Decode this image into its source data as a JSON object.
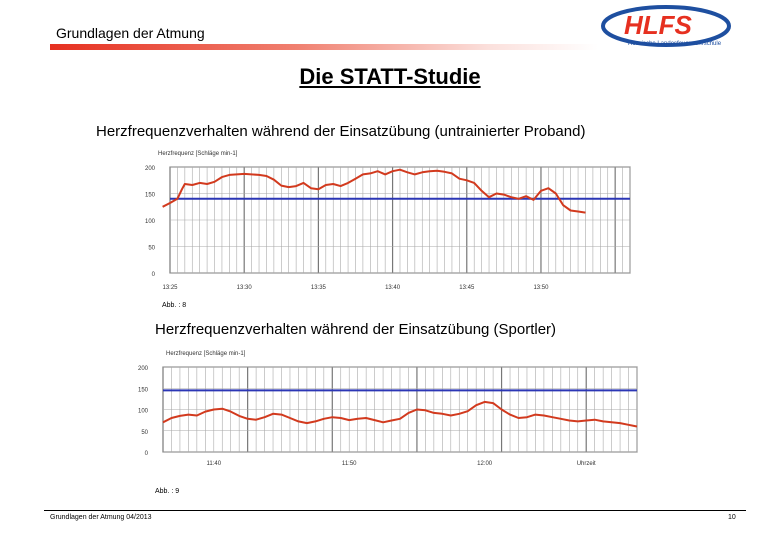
{
  "header": {
    "title": "Grundlagen der Atmung"
  },
  "logo": {
    "text": "HLFS",
    "tagline": "Hessische Landesfeuerwehrschule"
  },
  "page_title": "Die STATT-Studie",
  "footer": {
    "left": "Grundlagen der Atmung 04/2013",
    "page_number": "10"
  },
  "colors": {
    "heart_rate": "#d23a1e",
    "threshold": "#2b36b5",
    "grid": "#a9a9a9",
    "accent": "#e63020",
    "logo_blue": "#1e4fa0"
  },
  "chart_data": [
    {
      "type": "line",
      "title": "Herzfrequenzverhalten während der Einsatzübung (untrainierter Proband)",
      "ylabel": "Herzfrequenz [Schläge min-1]",
      "caption": "Abb. : 8",
      "ylim": [
        0,
        200
      ],
      "yticks": [
        0,
        50,
        100,
        150,
        200
      ],
      "xlim": [
        0,
        31
      ],
      "xticks": [
        {
          "x": 0,
          "label": "13:25"
        },
        {
          "x": 5,
          "label": "13:30"
        },
        {
          "x": 10,
          "label": "13:35"
        },
        {
          "x": 15,
          "label": "13:40"
        },
        {
          "x": 20,
          "label": "13:45"
        },
        {
          "x": 25,
          "label": "13:50"
        }
      ],
      "threshold": 140,
      "grid": true,
      "series": [
        {
          "points": [
            [
              -0.5,
              125
            ],
            [
              0,
              132
            ],
            [
              0.5,
              140
            ],
            [
              0.8,
              158
            ],
            [
              1,
              168
            ],
            [
              1.5,
              166
            ],
            [
              2,
              170
            ],
            [
              2.5,
              168
            ],
            [
              3,
              172
            ],
            [
              3.5,
              181
            ],
            [
              4,
              185
            ],
            [
              5,
              187
            ],
            [
              6,
              185
            ],
            [
              6.5,
              183
            ],
            [
              7,
              176
            ],
            [
              7.5,
              165
            ],
            [
              8,
              162
            ],
            [
              8.5,
              164
            ],
            [
              9,
              170
            ],
            [
              9.5,
              160
            ],
            [
              10,
              158
            ],
            [
              10.5,
              166
            ],
            [
              11,
              168
            ],
            [
              11.5,
              164
            ],
            [
              12,
              170
            ],
            [
              12.5,
              178
            ],
            [
              13,
              186
            ],
            [
              13.5,
              188
            ],
            [
              14,
              192
            ],
            [
              14.5,
              186
            ],
            [
              15,
              192
            ],
            [
              15.5,
              195
            ],
            [
              16,
              190
            ],
            [
              16.5,
              186
            ],
            [
              17,
              190
            ],
            [
              17.5,
              192
            ],
            [
              18,
              193
            ],
            [
              18.5,
              191
            ],
            [
              19,
              188
            ],
            [
              19.5,
              178
            ],
            [
              20,
              175
            ],
            [
              20.5,
              170
            ],
            [
              21,
              155
            ],
            [
              21.5,
              143
            ],
            [
              22,
              150
            ],
            [
              22.5,
              148
            ],
            [
              23,
              143
            ],
            [
              23.5,
              140
            ],
            [
              24,
              145
            ],
            [
              24.5,
              138
            ],
            [
              25,
              155
            ],
            [
              25.5,
              160
            ],
            [
              26,
              150
            ],
            [
              26.5,
              128
            ],
            [
              27,
              118
            ],
            [
              27.5,
              116
            ],
            [
              28,
              114
            ]
          ]
        }
      ]
    },
    {
      "type": "line",
      "title": "Herzfrequenzverhalten während der Einsatzübung (Sportler)",
      "ylabel": "Herzfrequenz [Schläge min-1]",
      "caption": "Abb. : 9",
      "ylim": [
        0,
        200
      ],
      "yticks": [
        0,
        50,
        100,
        150,
        200
      ],
      "xlim": [
        0,
        28
      ],
      "xticks": [
        {
          "x": 3,
          "label": "11:40"
        },
        {
          "x": 11,
          "label": "11:50"
        },
        {
          "x": 19,
          "label": "12:00"
        },
        {
          "x": 25,
          "label": "Uhrzeit"
        }
      ],
      "threshold": 145,
      "grid": true,
      "series": [
        {
          "points": [
            [
              0,
              70
            ],
            [
              0.5,
              80
            ],
            [
              1,
              85
            ],
            [
              1.5,
              88
            ],
            [
              2,
              86
            ],
            [
              2.5,
              95
            ],
            [
              3,
              100
            ],
            [
              3.5,
              102
            ],
            [
              4,
              95
            ],
            [
              4.5,
              85
            ],
            [
              5,
              78
            ],
            [
              5.5,
              76
            ],
            [
              6,
              82
            ],
            [
              6.5,
              90
            ],
            [
              7,
              88
            ],
            [
              7.5,
              80
            ],
            [
              8,
              72
            ],
            [
              8.5,
              68
            ],
            [
              9,
              72
            ],
            [
              9.5,
              78
            ],
            [
              10,
              82
            ],
            [
              10.5,
              80
            ],
            [
              11,
              75
            ],
            [
              11.5,
              78
            ],
            [
              12,
              80
            ],
            [
              12.5,
              75
            ],
            [
              13,
              70
            ],
            [
              13.5,
              74
            ],
            [
              14,
              78
            ],
            [
              14.5,
              92
            ],
            [
              15,
              100
            ],
            [
              15.5,
              98
            ],
            [
              16,
              92
            ],
            [
              16.5,
              90
            ],
            [
              17,
              86
            ],
            [
              17.5,
              90
            ],
            [
              18,
              96
            ],
            [
              18.5,
              110
            ],
            [
              19,
              118
            ],
            [
              19.5,
              115
            ],
            [
              20,
              100
            ],
            [
              20.5,
              88
            ],
            [
              21,
              80
            ],
            [
              21.5,
              82
            ],
            [
              22,
              88
            ],
            [
              22.5,
              86
            ],
            [
              23,
              82
            ],
            [
              23.5,
              78
            ],
            [
              24,
              74
            ],
            [
              24.5,
              72
            ],
            [
              25,
              74
            ],
            [
              25.5,
              76
            ],
            [
              26,
              72
            ],
            [
              26.5,
              70
            ],
            [
              27,
              68
            ],
            [
              27.5,
              64
            ],
            [
              28,
              60
            ]
          ]
        }
      ]
    }
  ]
}
